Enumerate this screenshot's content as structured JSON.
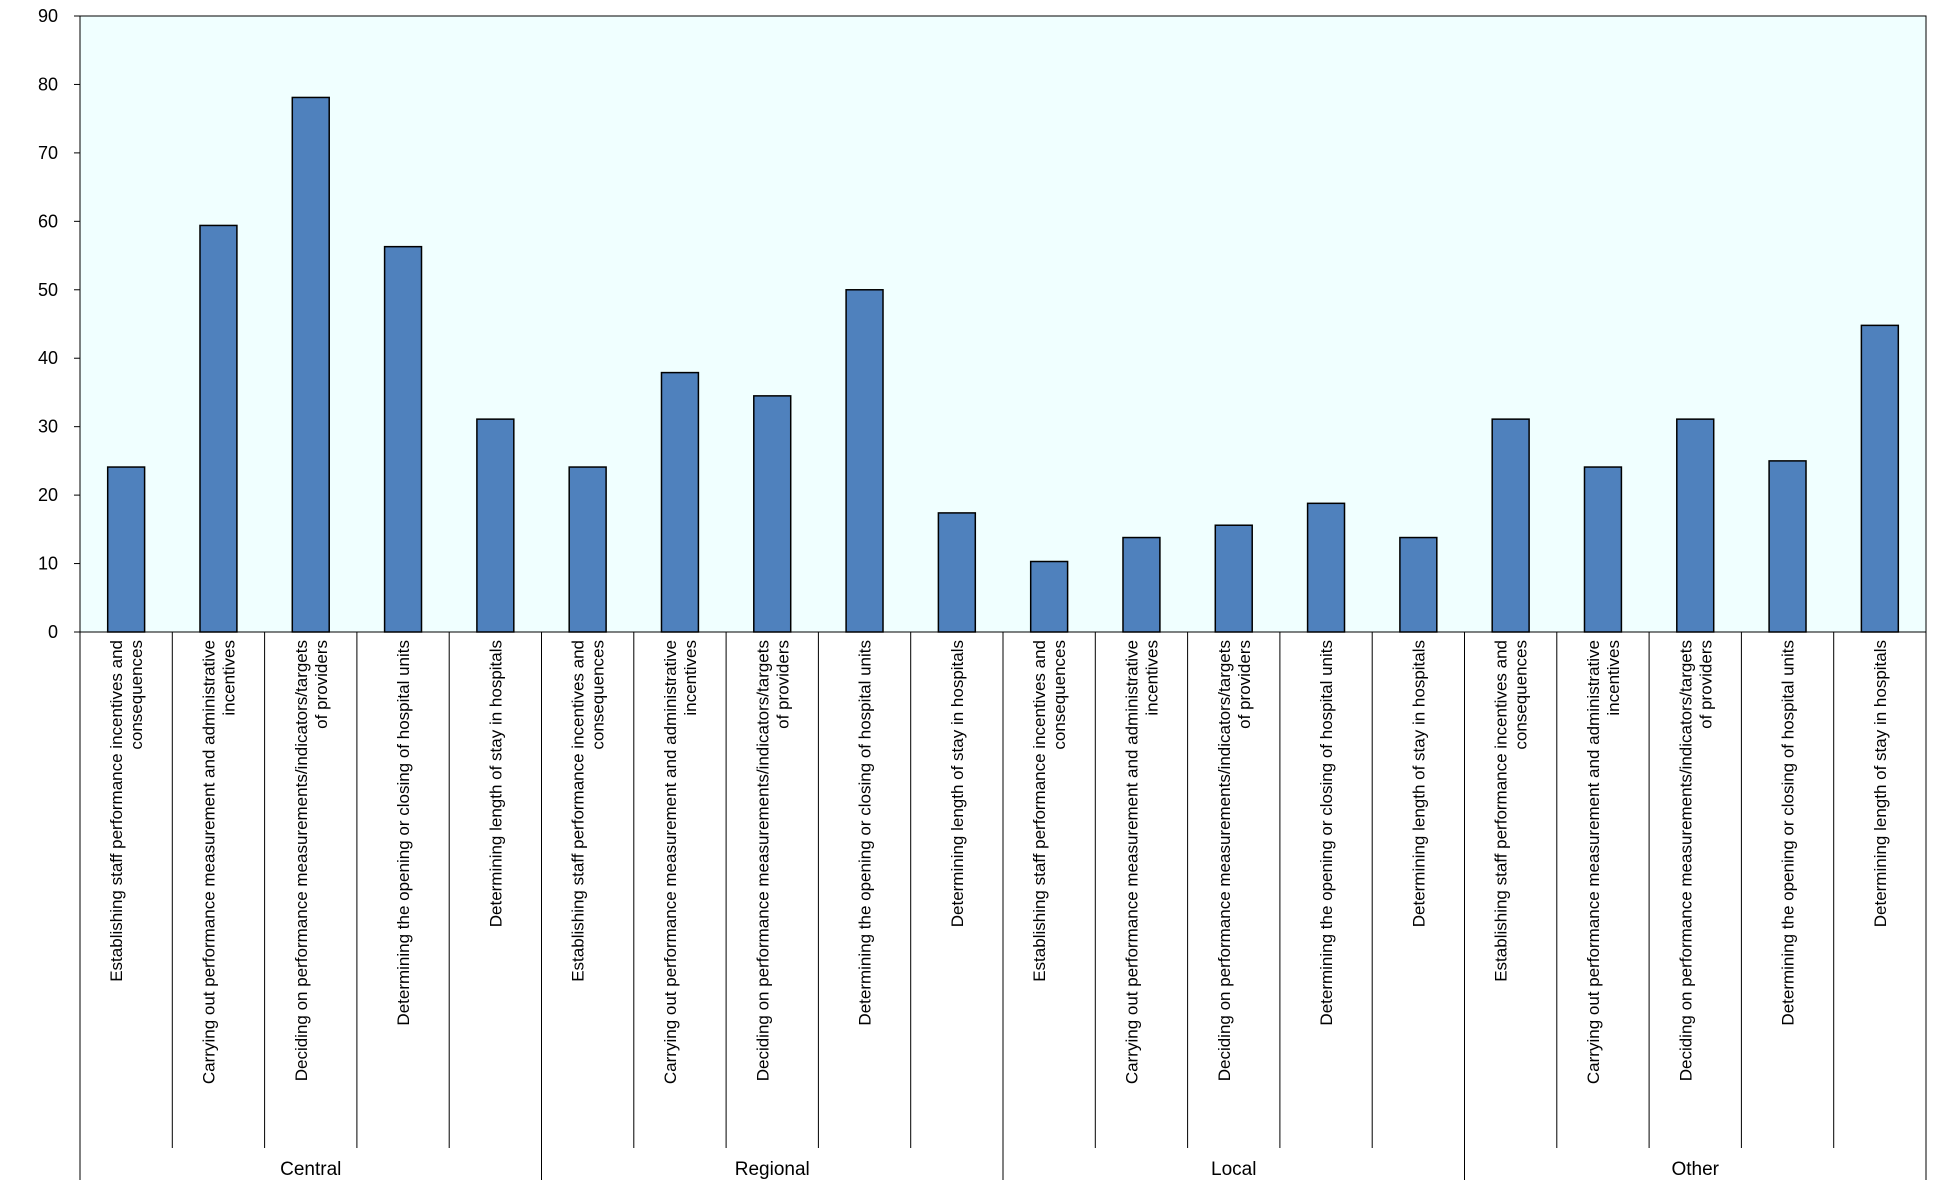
{
  "chart_data": {
    "type": "bar",
    "title": "",
    "xlabel": "",
    "ylabel": "",
    "ylim": [
      0,
      90
    ],
    "yticks": [
      0,
      10,
      20,
      30,
      40,
      50,
      60,
      70,
      80,
      90
    ],
    "grid": false,
    "legend": "none",
    "colors": {
      "bar": "#4F81BD",
      "plot_background": "#F0FFFF",
      "bar_outline": "#000000"
    },
    "groups": [
      {
        "name": "Central",
        "categories": [
          "Establishing staff performance incentives and consequences",
          "Carrying out performance measurement and administrative incentives",
          "Deciding on performance measurements/indicators/targets of providers",
          "Determining the opening or closing of hospital units",
          "Determining length of stay in hospitals"
        ],
        "values": [
          24.1,
          59.4,
          78.1,
          56.3,
          31.1
        ]
      },
      {
        "name": "Regional",
        "categories": [
          "Establishing staff performance incentives and consequences",
          "Carrying out performance measurement and administrative incentives",
          "Deciding on performance measurements/indicators/targets of providers",
          "Determining the opening or closing of hospital units",
          "Determining length of stay in hospitals"
        ],
        "values": [
          24.1,
          37.9,
          34.5,
          50.0,
          17.4
        ]
      },
      {
        "name": "Local",
        "categories": [
          "Establishing staff performance incentives and consequences",
          "Carrying out performance measurement and administrative incentives",
          "Deciding on performance measurements/indicators/targets of providers",
          "Determining the opening or closing of hospital units",
          "Determining length of stay in hospitals"
        ],
        "values": [
          10.3,
          13.8,
          15.6,
          18.8,
          13.8
        ]
      },
      {
        "name": "Other",
        "categories": [
          "Establishing staff performance incentives and consequences",
          "Carrying out performance measurement and administrative incentives",
          "Deciding on performance measurements/indicators/targets of providers",
          "Determining the opening or closing of hospital units",
          "Determining length of stay in hospitals"
        ],
        "values": [
          31.1,
          24.1,
          31.1,
          25.0,
          44.8
        ]
      }
    ]
  }
}
